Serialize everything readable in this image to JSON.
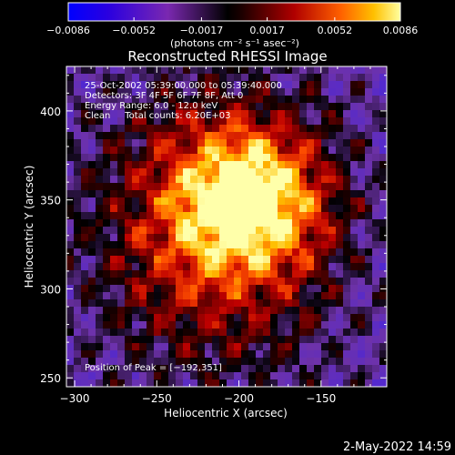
{
  "chart_data": {
    "type": "heatmap",
    "title": "Reconstructed RHESSI Image",
    "xlabel": "Heliocentric X (arcsec)",
    "ylabel": "Heliocentric Y (arcsec)",
    "xlim": [
      -305,
      -110
    ],
    "ylim": [
      245,
      425
    ],
    "x_ticks": [
      -300,
      -250,
      -200,
      -150
    ],
    "y_ticks": [
      250,
      300,
      350,
      400
    ],
    "x_tick_labels": [
      "−300",
      "−250",
      "−200",
      "−150"
    ],
    "y_tick_labels": [
      "250",
      "300",
      "350",
      "400"
    ],
    "colorbar": {
      "range": [
        -0.0086,
        0.0086
      ],
      "ticks": [
        -0.0086,
        -0.0052,
        -0.0017,
        0.0017,
        0.0052,
        0.0086
      ],
      "tick_labels": [
        "−0.0086",
        "−0.0052",
        "−0.0017",
        "0.0017",
        "0.0052",
        "0.0086"
      ],
      "unit_label": "(photons cm⁻² s⁻¹ asec⁻²)"
    },
    "annotations": [
      "25-Oct-2002 05:39:00.000 to 05:39:40.000",
      "Detectors: 3F 4F 5F 6F 7F 8F, Att 0",
      "Energy Range: 6.0 - 12.0 keV",
      "Clean     Total counts: 6.20E+03"
    ],
    "peak_label": "Position of Peak = [−192,351]",
    "peak": [
      -192,
      351
    ]
  },
  "timestamp": "2-May-2022 14:59"
}
